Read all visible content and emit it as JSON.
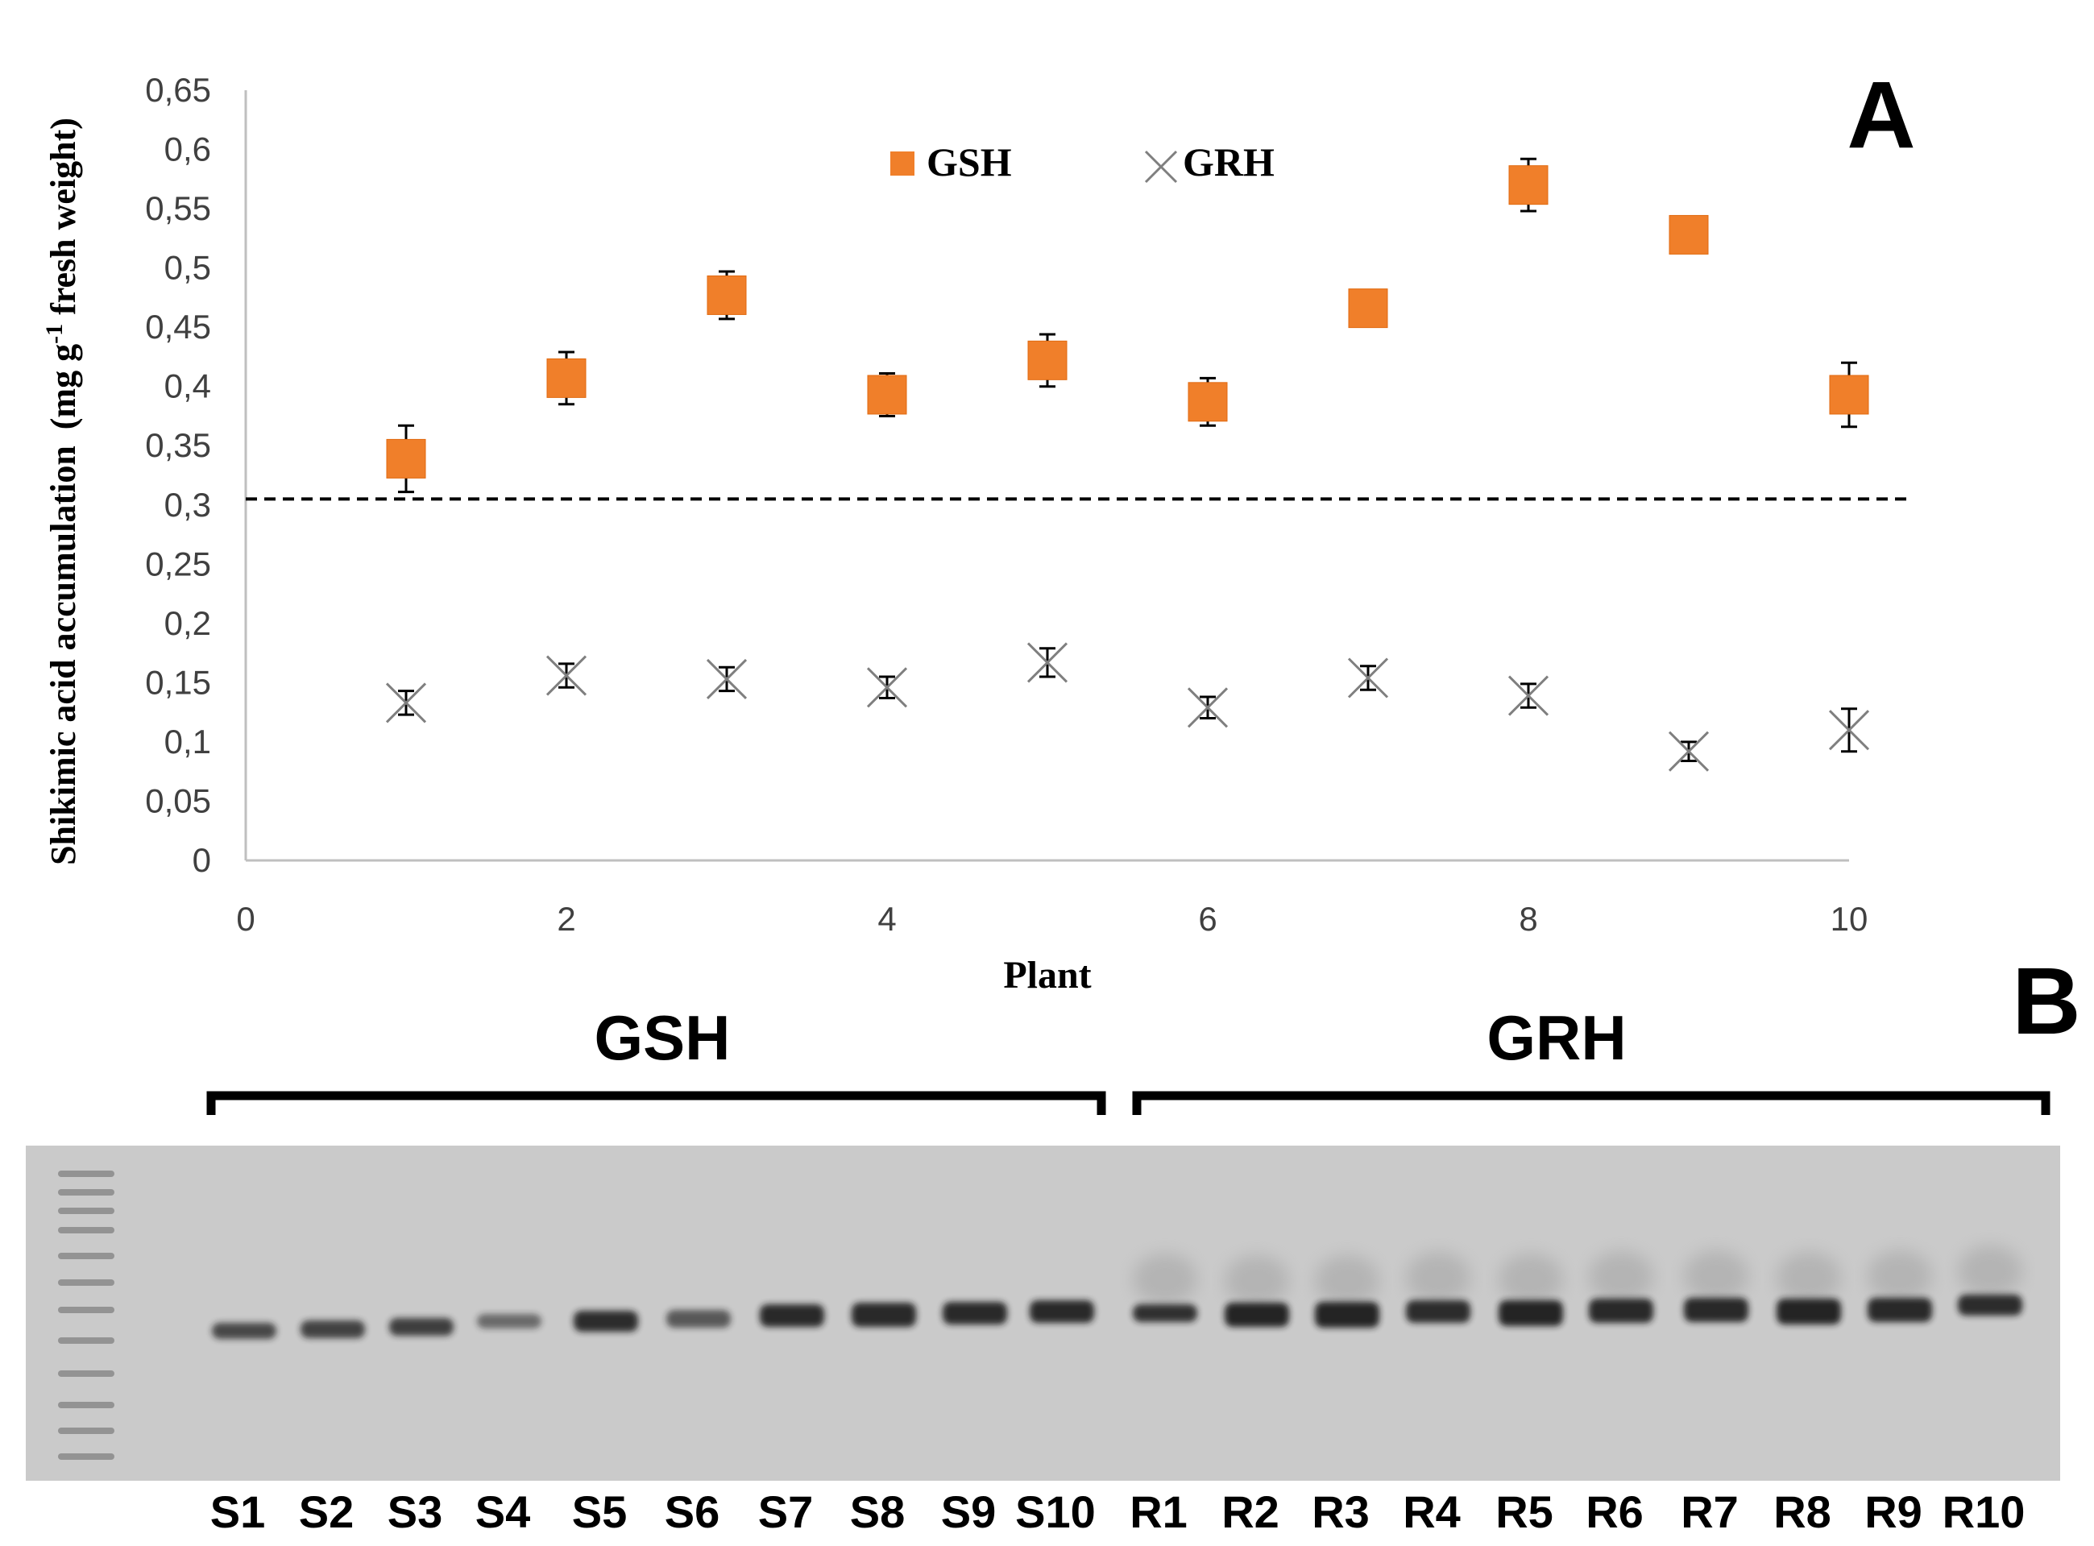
{
  "panel_a": {
    "letter": "A",
    "chart_data": {
      "type": "scatter",
      "xlabel": "Plant",
      "ylabel_main": "Shikimic acid accumulation",
      "ylabel_units": "(mg g",
      "ylabel_exp": "-1",
      "ylabel_units_tail": " fresh weight)",
      "xlim": [
        0,
        10
      ],
      "ylim": [
        0,
        0.65
      ],
      "x_ticks": [
        "0",
        "2",
        "4",
        "6",
        "8",
        "10"
      ],
      "x_tick_values": [
        0,
        2,
        4,
        6,
        8,
        10
      ],
      "y_ticks": [
        "0",
        "0,05",
        "0,1",
        "0,15",
        "0,2",
        "0,25",
        "0,3",
        "0,35",
        "0,4",
        "0,45",
        "0,5",
        "0,55",
        "0,6",
        "0,65"
      ],
      "y_tick_values": [
        0,
        0.05,
        0.1,
        0.15,
        0.2,
        0.25,
        0.3,
        0.35,
        0.4,
        0.45,
        0.5,
        0.55,
        0.6,
        0.65
      ],
      "threshold": 0.305,
      "grid": false,
      "legend_position": "top-center",
      "series": [
        {
          "name": "GSH",
          "marker": "square",
          "color": "#F07F2A",
          "x": [
            1,
            2,
            3,
            4,
            5,
            6,
            7,
            8,
            9,
            10
          ],
          "y": [
            0.339,
            0.407,
            0.477,
            0.393,
            0.422,
            0.387,
            0.466,
            0.57,
            0.528,
            0.393
          ],
          "err": [
            0.028,
            0.022,
            0.02,
            0.018,
            0.022,
            0.02,
            0.015,
            0.022,
            0.015,
            0.027
          ]
        },
        {
          "name": "GRH",
          "marker": "x",
          "color": "#7f7f7f",
          "x": [
            1,
            2,
            3,
            4,
            5,
            6,
            7,
            8,
            9,
            10
          ],
          "y": [
            0.133,
            0.156,
            0.153,
            0.146,
            0.167,
            0.129,
            0.154,
            0.139,
            0.092,
            0.11
          ],
          "err": [
            0.01,
            0.01,
            0.01,
            0.009,
            0.012,
            0.009,
            0.01,
            0.01,
            0.008,
            0.018
          ]
        }
      ]
    }
  },
  "panel_b": {
    "letter": "B",
    "group_left": "GSH",
    "group_right": "GRH",
    "lanes_s": [
      "S1",
      "S2",
      "S3",
      "S4",
      "S5",
      "S6",
      "S7",
      "S8",
      "S9",
      "S10"
    ],
    "lanes_r": [
      "R1",
      "R2",
      "R3",
      "R4",
      "R5",
      "R6",
      "R7",
      "R8",
      "R9",
      "R10"
    ],
    "gel_background": "#cacaca",
    "band_color": "#1a1a1a"
  }
}
